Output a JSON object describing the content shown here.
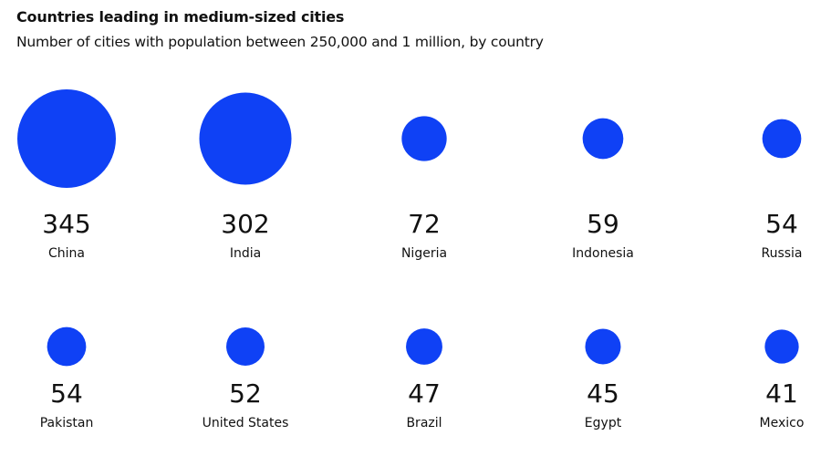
{
  "chart_data": {
    "type": "bubble",
    "title": "Countries leading in medium-sized cities",
    "subtitle": "Number of cities with population between 250,000 and 1 million, by country",
    "categories": [
      "China",
      "India",
      "Nigeria",
      "Indonesia",
      "Russia",
      "Pakistan",
      "United States",
      "Brazil",
      "Egypt",
      "Mexico"
    ],
    "values": [
      345,
      302,
      72,
      59,
      54,
      54,
      52,
      47,
      45,
      41
    ],
    "layout": "grid 5 columns x 2 rows",
    "bubble_color": "#0f41f5",
    "grid": false,
    "legend": "none"
  }
}
